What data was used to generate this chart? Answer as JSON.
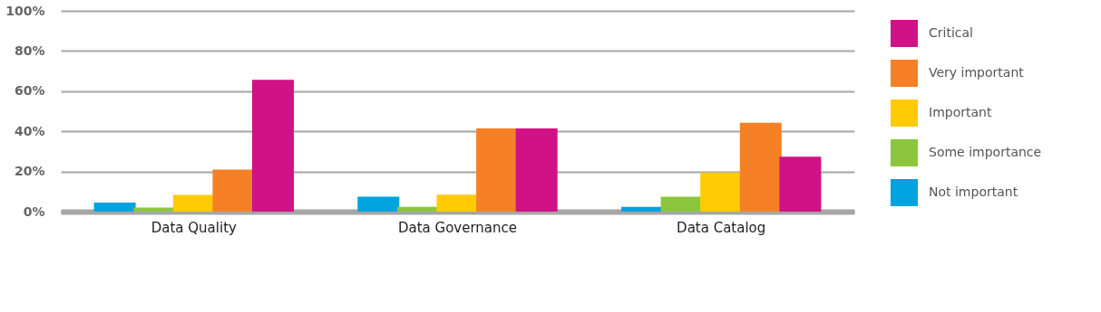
{
  "chart_data": {
    "type": "bar",
    "categories": [
      "Data Quality",
      "Data Governance",
      "Data Catalog"
    ],
    "series": [
      {
        "name": "Not important",
        "color": "#00a3de",
        "values": [
          4.5,
          7.4,
          2.4
        ]
      },
      {
        "name": "Some importance",
        "color": "#8cc63f",
        "values": [
          2,
          2.4,
          7.4
        ]
      },
      {
        "name": "Important",
        "color": "#ffcb05",
        "values": [
          8.3,
          8.5,
          19.5
        ]
      },
      {
        "name": "Very important",
        "color": "#f58025",
        "values": [
          21,
          41.4,
          44.3
        ]
      },
      {
        "name": "Critical",
        "color": "#d01286",
        "values": [
          65.6,
          41.4,
          27.4
        ]
      }
    ],
    "ylim": [
      0,
      100
    ],
    "yticks": [
      {
        "value": 0,
        "label": "0%"
      },
      {
        "value": 20,
        "label": "20%"
      },
      {
        "value": 40,
        "label": "40%"
      },
      {
        "value": 60,
        "label": "60%"
      },
      {
        "value": 80,
        "label": "80%"
      },
      {
        "value": 100,
        "label": "100%"
      }
    ],
    "grid": "y",
    "legend": "right"
  }
}
